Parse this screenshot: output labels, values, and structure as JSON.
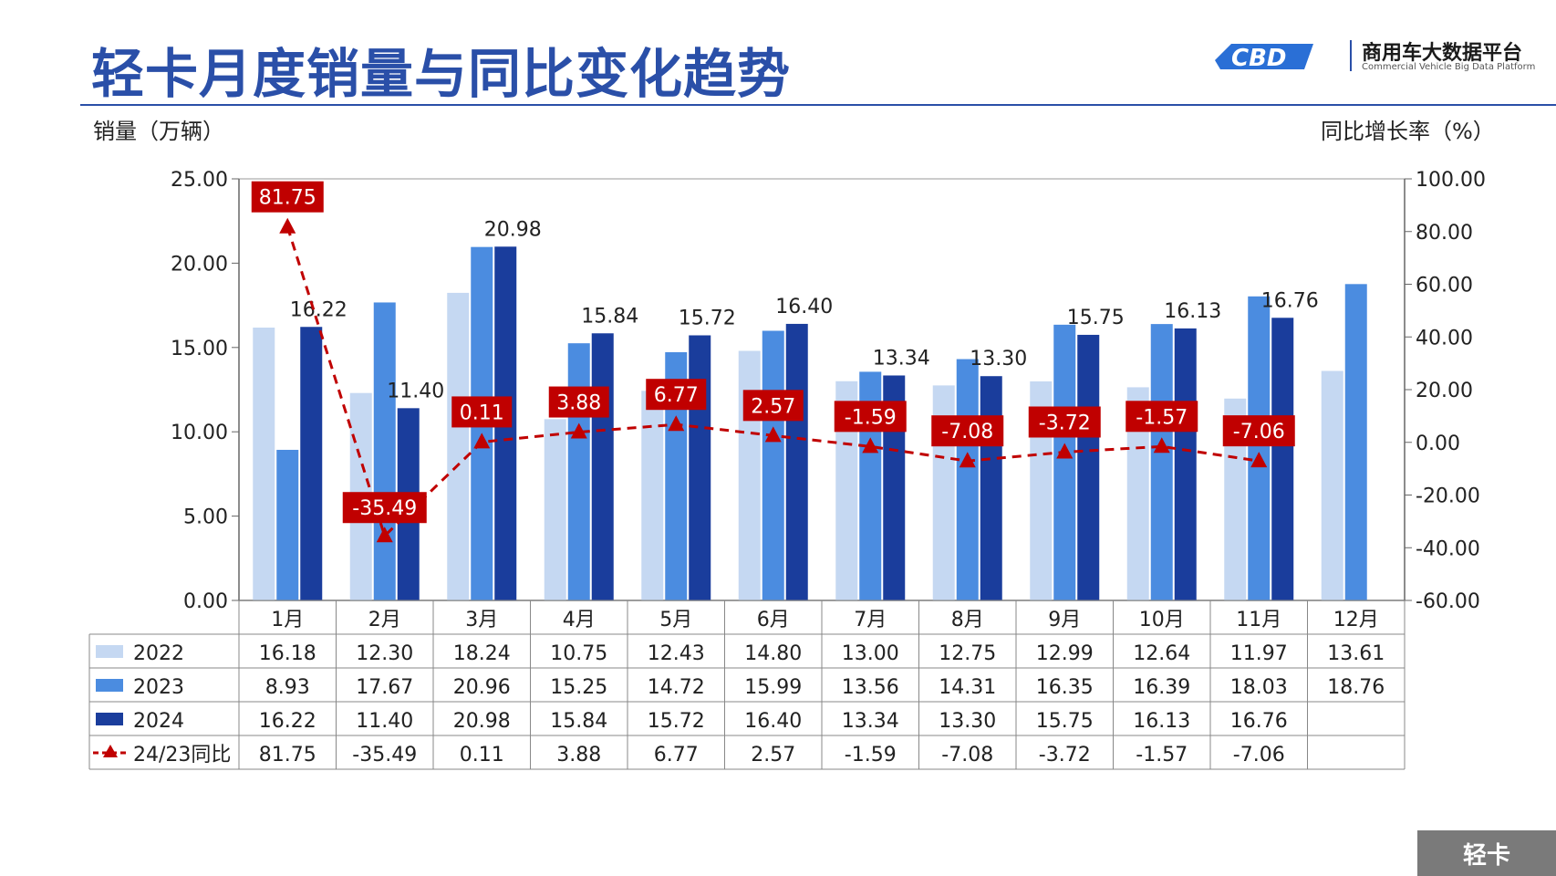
{
  "header": {
    "title": "轻卡月度销量与同比变化趋势",
    "logo_text": "商用车大数据平台",
    "logo_sub": "Commercial Vehicle Big Data Platform"
  },
  "axis_labels": {
    "left": "销量（万辆）",
    "right": "同比增长率（%）"
  },
  "badge": {
    "label": "轻卡"
  },
  "colors": {
    "y2022": "#c5d8f2",
    "y2023": "#4b8ce0",
    "y2024": "#1a3d9c",
    "yoy": "#c00000",
    "title": "#2a4fa8"
  },
  "chart_data": {
    "type": "bar",
    "categories": [
      "1月",
      "2月",
      "3月",
      "4月",
      "5月",
      "6月",
      "7月",
      "8月",
      "9月",
      "10月",
      "11月",
      "12月"
    ],
    "series": [
      {
        "name": "2022",
        "values": [
          16.18,
          12.3,
          18.24,
          10.75,
          12.43,
          14.8,
          13.0,
          12.75,
          12.99,
          12.64,
          11.97,
          13.61
        ]
      },
      {
        "name": "2023",
        "values": [
          8.93,
          17.67,
          20.96,
          15.25,
          14.72,
          15.99,
          13.56,
          14.31,
          16.35,
          16.39,
          18.03,
          18.76
        ]
      },
      {
        "name": "2024",
        "values": [
          16.22,
          11.4,
          20.98,
          15.84,
          15.72,
          16.4,
          13.34,
          13.3,
          15.75,
          16.13,
          16.76,
          null
        ]
      }
    ],
    "line_series": {
      "name": "24/23同比",
      "axis": "right",
      "values": [
        81.75,
        -35.49,
        0.11,
        3.88,
        6.77,
        2.57,
        -1.59,
        -7.08,
        -3.72,
        -1.57,
        -7.06,
        null
      ]
    },
    "ylim_left": [
      0,
      25
    ],
    "ylim_right": [
      -60,
      100
    ],
    "yticks_left": [
      "0.00",
      "5.00",
      "10.00",
      "15.00",
      "20.00",
      "25.00"
    ],
    "yticks_right": [
      "-60.00",
      "-40.00",
      "-20.00",
      "0.00",
      "20.00",
      "40.00",
      "60.00",
      "80.00",
      "100.00"
    ],
    "data_table": {
      "rows": [
        {
          "label": "2022",
          "values": [
            "16.18",
            "12.30",
            "18.24",
            "10.75",
            "12.43",
            "14.80",
            "13.00",
            "12.75",
            "12.99",
            "12.64",
            "11.97",
            "13.61"
          ]
        },
        {
          "label": "2023",
          "values": [
            "8.93",
            "17.67",
            "20.96",
            "15.25",
            "14.72",
            "15.99",
            "13.56",
            "14.31",
            "16.35",
            "16.39",
            "18.03",
            "18.76"
          ]
        },
        {
          "label": "2024",
          "values": [
            "16.22",
            "11.40",
            "20.98",
            "15.84",
            "15.72",
            "16.40",
            "13.34",
            "13.30",
            "15.75",
            "16.13",
            "16.76",
            ""
          ]
        },
        {
          "label": "24/23同比",
          "values": [
            "81.75",
            "-35.49",
            "0.11",
            "3.88",
            "6.77",
            "2.57",
            "-1.59",
            "-7.08",
            "-3.72",
            "-1.57",
            "-7.06",
            ""
          ]
        }
      ]
    },
    "bar_labels_2024": [
      "16.22",
      "11.40",
      "20.98",
      "15.84",
      "15.72",
      "16.40",
      "13.34",
      "13.30",
      "15.75",
      "16.13",
      "16.76"
    ],
    "yoy_labels": [
      "81.75",
      "-35.49",
      "0.11",
      "3.88",
      "6.77",
      "2.57",
      "-1.59",
      "-7.08",
      "-3.72",
      "-1.57",
      "-7.06"
    ]
  }
}
